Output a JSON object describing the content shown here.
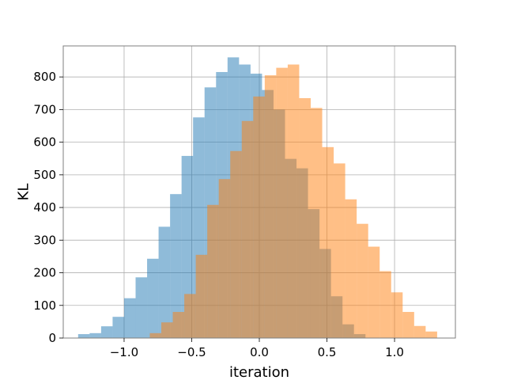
{
  "chart_data": {
    "type": "bar",
    "title": "",
    "xlabel": "iteration",
    "ylabel": "KL",
    "xlim": [
      -1.45,
      1.45
    ],
    "ylim": [
      0,
      895
    ],
    "grid": true,
    "legend": "none",
    "xticks": [
      -1.0,
      -0.5,
      0.0,
      0.5,
      1.0
    ],
    "xtick_labels": [
      "−1.0",
      "−0.5",
      "0.0",
      "0.5",
      "1.0"
    ],
    "yticks": [
      0,
      100,
      200,
      300,
      400,
      500,
      600,
      700,
      800
    ],
    "ytick_labels": [
      "0",
      "100",
      "200",
      "300",
      "400",
      "500",
      "600",
      "700",
      "800"
    ],
    "series": [
      {
        "color": "#1f77b4",
        "opacity": 0.5,
        "bin_edges": [
          -1.34,
          -1.255,
          -1.17,
          -1.085,
          -1.0,
          -0.915,
          -0.83,
          -0.745,
          -0.66,
          -0.575,
          -0.49,
          -0.405,
          -0.32,
          -0.235,
          -0.15,
          -0.065,
          0.02,
          0.105,
          0.19,
          0.275,
          0.36,
          0.445,
          0.53,
          0.615,
          0.7,
          0.785
        ],
        "values": [
          12,
          15,
          36,
          65,
          122,
          186,
          243,
          341,
          441,
          558,
          676,
          768,
          815,
          860,
          838,
          810,
          760,
          700,
          549,
          520,
          395,
          273,
          128,
          42,
          12
        ]
      },
      {
        "color": "#ff7f0e",
        "opacity": 0.5,
        "bin_edges": [
          -0.81,
          -0.725,
          -0.64,
          -0.555,
          -0.47,
          -0.385,
          -0.3,
          -0.215,
          -0.13,
          -0.045,
          0.04,
          0.125,
          0.21,
          0.295,
          0.38,
          0.465,
          0.55,
          0.635,
          0.72,
          0.805,
          0.89,
          0.975,
          1.06,
          1.145,
          1.23,
          1.315
        ],
        "values": [
          15,
          48,
          80,
          135,
          255,
          408,
          487,
          573,
          665,
          740,
          805,
          828,
          838,
          735,
          705,
          585,
          535,
          425,
          350,
          280,
          205,
          140,
          80,
          37,
          20
        ]
      }
    ]
  }
}
